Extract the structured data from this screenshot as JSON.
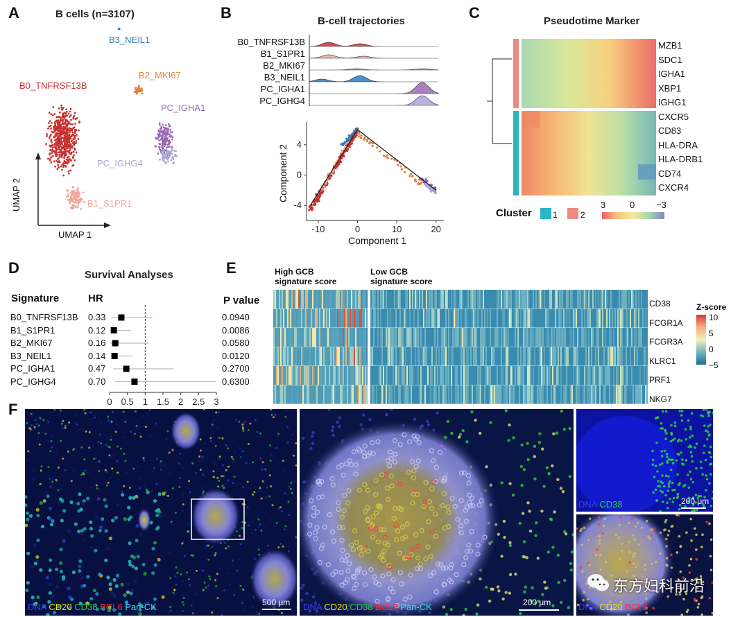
{
  "panels": {
    "A": "A",
    "B": "B",
    "C": "C",
    "D": "D",
    "E": "E",
    "F": "F"
  },
  "panelA": {
    "title": "B cells (n=3107)",
    "xlabel": "UMAP 1",
    "ylabel": "UMAP 2",
    "clusters": [
      {
        "label": "B0_TNFRSF13B",
        "color": "#c8302f"
      },
      {
        "label": "B1_S1PR1",
        "color": "#f0a79c"
      },
      {
        "label": "B2_MKI67",
        "color": "#e7803d"
      },
      {
        "label": "B3_NEIL1",
        "color": "#2e7ab8"
      },
      {
        "label": "PC_IGHA1",
        "color": "#9a6ab4"
      },
      {
        "label": "PC_IGHG4",
        "color": "#a9a5d6"
      }
    ]
  },
  "panelB": {
    "title": "B-cell trajectories",
    "ridges": [
      "B0_TNFRSF13B",
      "B1_S1PR1",
      "B2_MKI67",
      "B3_NEIL1",
      "PC_IGHA1",
      "PC_IGHG4"
    ],
    "chart_data": {
      "type": "scatter",
      "xlabel": "Component 1",
      "ylabel": "Component 2",
      "xticks": [
        -10,
        0,
        10,
        20
      ],
      "yticks": [
        4,
        0,
        -4
      ],
      "xlim": [
        -13,
        22
      ],
      "ylim": [
        -6,
        7
      ]
    }
  },
  "panelC": {
    "title": "Pseudotime Marker",
    "genes": [
      "MZB1",
      "SDC1",
      "IGHA1",
      "XBP1",
      "IGHG1",
      "CXCR5",
      "CD83",
      "HLA-DRA",
      "HLA-DRB1",
      "CD74",
      "CXCR4"
    ],
    "legend_title": "Cluster",
    "cluster_labels": [
      "1",
      "2"
    ],
    "cluster_colors": [
      "#2bb6c1",
      "#ee8a84"
    ],
    "scale_labels": [
      "3",
      "0",
      "−3"
    ]
  },
  "panelD": {
    "title": "Survival Analyses",
    "col_signature": "Signature",
    "col_hr": "HR",
    "col_p": "P value",
    "rows": [
      {
        "sig": "B0_TNFRSF13B",
        "hr": "0.33",
        "p": "0.0940"
      },
      {
        "sig": "B1_S1PR1",
        "hr": "0.12",
        "p": "0.0086"
      },
      {
        "sig": "B2_MKI67",
        "hr": "0.16",
        "p": "0.0580"
      },
      {
        "sig": "B3_NEIL1",
        "hr": "0.14",
        "p": "0.0120"
      },
      {
        "sig": "PC_IGHA1",
        "hr": "0.47",
        "p": "0.2700"
      },
      {
        "sig": "PC_IGHG4",
        "hr": "0.70",
        "p": "0.6300"
      }
    ],
    "chart_data": {
      "type": "scatter",
      "title": "Survival Analyses",
      "xticks": [
        "0",
        "0.5",
        "1",
        "1.5",
        "2",
        "2.5",
        "3"
      ],
      "xlim": [
        0,
        3
      ],
      "hr": [
        0.33,
        0.12,
        0.16,
        0.14,
        0.47,
        0.7
      ],
      "ci_low": [
        0.05,
        0.02,
        0.03,
        0.03,
        0.1,
        0.15
      ],
      "ci_high": [
        1.2,
        0.6,
        1.1,
        0.65,
        1.8,
        3.0
      ]
    }
  },
  "panelE": {
    "group_high_1": "High GCB",
    "group_high_2": "signature score",
    "group_low_1": "Low GCB",
    "group_low_2": "signature score",
    "genes": [
      "CD38",
      "FCGR1A",
      "FCGR3A",
      "KLRC1",
      "PRF1",
      "NKG7"
    ],
    "legend_title": "Z-score",
    "legend_ticks": [
      "10",
      "5",
      "0",
      "−5"
    ]
  },
  "panelF": {
    "left_legend": [
      {
        "text": "DNA",
        "color": "#3b3bff"
      },
      {
        "text": "CD20",
        "color": "#f2e400"
      },
      {
        "text": "CD38",
        "color": "#27d13b"
      },
      {
        "text": "BCL6",
        "color": "#ff2a2a"
      },
      {
        "text": "Pan-CK",
        "color": "#2fe3e3"
      }
    ],
    "left_scale": "500 μm",
    "mid_scale": "200 μm",
    "right_top_legend": [
      {
        "text": "DNA",
        "color": "#3b3bff"
      },
      {
        "text": "CD38",
        "color": "#27d13b"
      }
    ],
    "right_top_scale": "200 μm",
    "right_bottom_legend": [
      {
        "text": "DNA",
        "color": "#3b3bff"
      },
      {
        "text": "CD20",
        "color": "#f2e400"
      },
      {
        "text": "BCL6",
        "color": "#ff2a2a"
      }
    ],
    "watermark": "东方妇科前沿"
  }
}
